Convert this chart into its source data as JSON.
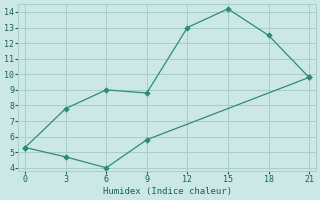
{
  "series1_x": [
    0,
    3,
    6,
    9,
    12,
    15,
    18,
    21
  ],
  "series1_y": [
    5.3,
    7.8,
    9.0,
    8.8,
    13.0,
    14.2,
    12.5,
    9.8
  ],
  "series2_x": [
    0,
    3,
    6,
    9,
    21
  ],
  "series2_y": [
    5.3,
    4.7,
    4.0,
    5.8,
    9.8
  ],
  "line_color": "#2e8b7a",
  "bg_color": "#cce8e5",
  "grid_color": "#a8ceca",
  "xlabel": "Humidex (Indice chaleur)",
  "xlim": [
    -0.5,
    21.5
  ],
  "ylim": [
    3.8,
    14.5
  ],
  "xticks": [
    0,
    3,
    6,
    9,
    12,
    15,
    18,
    21
  ],
  "yticks": [
    4,
    5,
    6,
    7,
    8,
    9,
    10,
    11,
    12,
    13,
    14
  ],
  "figsize": [
    3.2,
    2.0
  ],
  "dpi": 100
}
